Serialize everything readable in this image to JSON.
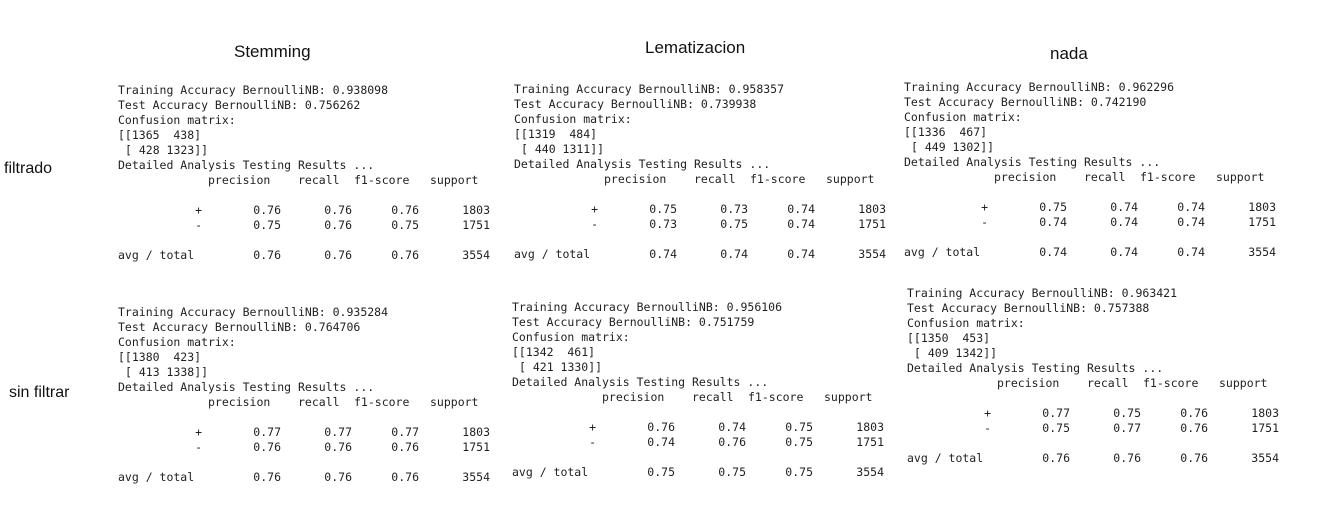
{
  "columns": [
    "Stemming",
    "Lematizacion",
    "nada"
  ],
  "rows": [
    "filtrado",
    "sin filtrar"
  ],
  "table_headers": {
    "precision": "precision",
    "recall": "recall",
    "f1": "f1-score",
    "support": "support"
  },
  "reports": [
    {
      "train": "Training Accuracy BernoulliNB: 0.938098",
      "test": "Test Accuracy BernoulliNB: 0.756262",
      "cm_title": "Confusion matrix:",
      "cm_row1": "[[1365  438]",
      "cm_row2": "[ 428 1323]]",
      "analysis": "Detailed Analysis Testing Results ...",
      "pos": {
        "label": "+",
        "precision": "0.76",
        "recall": "0.76",
        "f1": "0.76",
        "support": "1803"
      },
      "neg": {
        "label": "-",
        "precision": "0.75",
        "recall": "0.76",
        "f1": "0.75",
        "support": "1751"
      },
      "avg": {
        "label": "avg / total",
        "precision": "0.76",
        "recall": "0.76",
        "f1": "0.76",
        "support": "3554"
      }
    },
    {
      "train": "Training Accuracy BernoulliNB: 0.958357",
      "test": "Test Accuracy BernoulliNB: 0.739938",
      "cm_title": "Confusion matrix:",
      "cm_row1": "[[1319  484]",
      "cm_row2": "[ 440 1311]]",
      "analysis": "Detailed Analysis Testing Results ...",
      "pos": {
        "label": "+",
        "precision": "0.75",
        "recall": "0.73",
        "f1": "0.74",
        "support": "1803"
      },
      "neg": {
        "label": "-",
        "precision": "0.73",
        "recall": "0.75",
        "f1": "0.74",
        "support": "1751"
      },
      "avg": {
        "label": "avg / total",
        "precision": "0.74",
        "recall": "0.74",
        "f1": "0.74",
        "support": "3554"
      }
    },
    {
      "train": "Training Accuracy BernoulliNB: 0.962296",
      "test": "Test Accuracy BernoulliNB: 0.742190",
      "cm_title": "Confusion matrix:",
      "cm_row1": "[[1336  467]",
      "cm_row2": "[ 449 1302]]",
      "analysis": "Detailed Analysis Testing Results ...",
      "pos": {
        "label": "+",
        "precision": "0.75",
        "recall": "0.74",
        "f1": "0.74",
        "support": "1803"
      },
      "neg": {
        "label": "-",
        "precision": "0.74",
        "recall": "0.74",
        "f1": "0.74",
        "support": "1751"
      },
      "avg": {
        "label": "avg / total",
        "precision": "0.74",
        "recall": "0.74",
        "f1": "0.74",
        "support": "3554"
      }
    },
    {
      "train": "Training Accuracy BernoulliNB: 0.935284",
      "test": "Test Accuracy BernoulliNB: 0.764706",
      "cm_title": "Confusion matrix:",
      "cm_row1": "[[1380  423]",
      "cm_row2": "[ 413 1338]]",
      "analysis": "Detailed Analysis Testing Results ...",
      "pos": {
        "label": "+",
        "precision": "0.77",
        "recall": "0.77",
        "f1": "0.77",
        "support": "1803"
      },
      "neg": {
        "label": "-",
        "precision": "0.76",
        "recall": "0.76",
        "f1": "0.76",
        "support": "1751"
      },
      "avg": {
        "label": "avg / total",
        "precision": "0.76",
        "recall": "0.76",
        "f1": "0.76",
        "support": "3554"
      }
    },
    {
      "train": "Training Accuracy BernoulliNB: 0.956106",
      "test": "Test Accuracy BernoulliNB: 0.751759",
      "cm_title": "Confusion matrix:",
      "cm_row1": "[[1342  461]",
      "cm_row2": "[ 421 1330]]",
      "analysis": "Detailed Analysis Testing Results ...",
      "pos": {
        "label": "+",
        "precision": "0.76",
        "recall": "0.74",
        "f1": "0.75",
        "support": "1803"
      },
      "neg": {
        "label": "-",
        "precision": "0.74",
        "recall": "0.76",
        "f1": "0.75",
        "support": "1751"
      },
      "avg": {
        "label": "avg / total",
        "precision": "0.75",
        "recall": "0.75",
        "f1": "0.75",
        "support": "3554"
      }
    },
    {
      "train": "Training Accuracy BernoulliNB: 0.963421",
      "test": "Test Accuracy BernoulliNB: 0.757388",
      "cm_title": "Confusion matrix:",
      "cm_row1": "[[1350  453]",
      "cm_row2": "[ 409 1342]]",
      "analysis": "Detailed Analysis Testing Results ...",
      "pos": {
        "label": "+",
        "precision": "0.77",
        "recall": "0.75",
        "f1": "0.76",
        "support": "1803"
      },
      "neg": {
        "label": "-",
        "precision": "0.75",
        "recall": "0.77",
        "f1": "0.76",
        "support": "1751"
      },
      "avg": {
        "label": "avg / total",
        "precision": "0.76",
        "recall": "0.76",
        "f1": "0.76",
        "support": "3554"
      }
    }
  ]
}
